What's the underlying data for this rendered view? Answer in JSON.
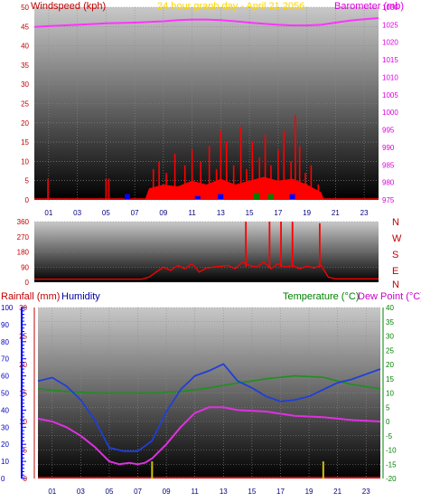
{
  "colors": {
    "wind": "#ff0000",
    "gust_alt": "#0000ff",
    "gust_green": "#008000",
    "barometer": "#ff33ff",
    "humidity": "#1f3fd9",
    "temperature": "#1f8f1f",
    "dewpoint": "#e030e0",
    "rain": "#d4c000",
    "title": "#ffd700",
    "left_label": "#c00000",
    "hum_label": "#0000a0",
    "temp_label": "#008000",
    "dew_label": "#cc00cc"
  },
  "chart_data": [
    {
      "type": "line",
      "title": "24 hour graph day - April 21 2056",
      "left_axis_label": "Windspeed (kph)",
      "right_axis_label": "Barometer (mb)",
      "left_ylim": [
        0,
        50
      ],
      "left_ticks": [
        "0",
        "5",
        "10",
        "15",
        "20",
        "25",
        "30",
        "35",
        "40",
        "45",
        "50"
      ],
      "right_ylim": [
        975,
        1030
      ],
      "right_ticks": [
        "975",
        "980",
        "985",
        "990",
        "995",
        "1000",
        "1005",
        "1010",
        "1015",
        "1020",
        "1025",
        "1030"
      ],
      "x_ticks": [
        "01",
        "03",
        "05",
        "07",
        "09",
        "11",
        "13",
        "15",
        "17",
        "19",
        "21",
        "23"
      ],
      "x_range_hours": [
        0,
        24
      ],
      "barometer_series": {
        "x": [
          0,
          1,
          2,
          3,
          4,
          5,
          6,
          7,
          8,
          9,
          10,
          11,
          12,
          13,
          14,
          15,
          16,
          17,
          18,
          19,
          20,
          21,
          22,
          23,
          24
        ],
        "y": [
          1024.4,
          1024.6,
          1024.8,
          1025.0,
          1025.2,
          1025.4,
          1025.5,
          1025.6,
          1025.8,
          1026.0,
          1026.3,
          1026.5,
          1026.5,
          1026.3,
          1026.0,
          1025.6,
          1025.3,
          1025.0,
          1024.8,
          1024.8,
          1025.0,
          1025.6,
          1026.2,
          1026.6,
          1026.9
        ]
      },
      "wind_spikes": {
        "x": [
          0.95,
          5.0,
          5.2,
          8.3,
          8.7,
          9.2,
          9.8,
          10.5,
          11.0,
          11.6,
          12.2,
          12.7,
          13.0,
          13.4,
          13.9,
          14.4,
          14.8,
          15.2,
          15.7,
          16.1,
          16.5,
          17.0,
          17.4,
          17.9,
          18.2,
          18.5,
          18.9,
          19.3,
          19.8
        ],
        "y": [
          5.5,
          5.5,
          5.5,
          8,
          10,
          7,
          12,
          9,
          13,
          10,
          14,
          8,
          18,
          15,
          9,
          19,
          8,
          15,
          11,
          17,
          9,
          13,
          18,
          10,
          22,
          14,
          7,
          9,
          4
        ]
      },
      "wind_base": {
        "x": [
          0,
          7.7,
          8.0,
          9,
          10,
          11,
          12,
          13,
          14,
          15,
          16,
          17,
          18,
          19,
          20,
          20.2,
          24
        ],
        "y": [
          0,
          0,
          3,
          4,
          3.5,
          5,
          4,
          5.5,
          4,
          5,
          6,
          5,
          5.5,
          4,
          2,
          0,
          0
        ]
      }
    },
    {
      "type": "line",
      "title": "",
      "left_ylim": [
        0,
        360
      ],
      "left_ticks": [
        "0",
        "90",
        "180",
        "270",
        "360"
      ],
      "right_labels": [
        "N",
        "W",
        "S",
        "E",
        "N"
      ],
      "direction_series": {
        "x": [
          0,
          7.5,
          8.0,
          8.5,
          9,
          9.5,
          10,
          10.5,
          11,
          11.5,
          12,
          12.5,
          13,
          13.5,
          14,
          14.5,
          15,
          15.5,
          16,
          16.5,
          17,
          17.5,
          18,
          18.5,
          19,
          19.5,
          20,
          20.5,
          21,
          24
        ],
        "y": [
          18,
          18,
          30,
          60,
          90,
          70,
          100,
          80,
          110,
          60,
          85,
          90,
          95,
          100,
          80,
          120,
          100,
          90,
          120,
          80,
          110,
          90,
          100,
          80,
          95,
          85,
          100,
          30,
          20,
          20
        ]
      },
      "direction_spikes": {
        "x": [
          14.75,
          16.4,
          17.2,
          18.0,
          19.9
        ],
        "y": [
          360,
          360,
          360,
          360,
          350
        ]
      }
    },
    {
      "type": "line",
      "title": "",
      "labels": {
        "rainfall": "Rainfall (mm)",
        "humidity": "Humidity",
        "temperature": "Temperature (°C)",
        "dewpoint": "Dew Point (°C)"
      },
      "humidity_axis": {
        "ylim": [
          0,
          100
        ],
        "ticks": [
          "0",
          "10",
          "20",
          "30",
          "40",
          "50",
          "60",
          "70",
          "80",
          "90",
          "100"
        ]
      },
      "rain_axis": {
        "ylim": [
          0,
          30
        ],
        "ticks": [
          "0",
          "5",
          "10",
          "15",
          "20",
          "25",
          "30"
        ]
      },
      "temp_axis": {
        "ylim": [
          -20,
          40
        ],
        "ticks": [
          "-20",
          "-15",
          "-10",
          "-5",
          "0",
          "5",
          "10",
          "15",
          "20",
          "25",
          "30",
          "35",
          "40"
        ]
      },
      "x_ticks": [
        "01",
        "03",
        "05",
        "07",
        "09",
        "11",
        "13",
        "15",
        "17",
        "19",
        "21",
        "23"
      ],
      "humidity_series": {
        "x": [
          0,
          1,
          2,
          3,
          4,
          5,
          6,
          7,
          8,
          9,
          10,
          11,
          12,
          13,
          14,
          15,
          16,
          17,
          18,
          19,
          20,
          21,
          22,
          23,
          24
        ],
        "y": [
          57,
          59,
          54,
          46,
          34,
          18,
          16,
          16,
          22,
          39,
          52,
          60,
          63,
          67,
          57,
          53,
          48,
          45,
          46,
          48,
          52,
          56,
          58,
          61,
          64
        ]
      },
      "temperature_series": {
        "x": [
          0,
          2,
          4,
          6,
          8,
          10,
          12,
          14,
          16,
          18,
          20,
          22,
          24
        ],
        "y": [
          11.5,
          10.5,
          10,
          10,
          10,
          10.5,
          11.8,
          13.5,
          15,
          16,
          15.5,
          13,
          11.5
        ]
      },
      "dewpoint_series": {
        "x": [
          0,
          1,
          2,
          3,
          4,
          5,
          5.7,
          6.4,
          7.0,
          7.5,
          8,
          9,
          10,
          11,
          12,
          13,
          14,
          16,
          18,
          20,
          22,
          24
        ],
        "y": [
          1,
          0,
          -2,
          -5,
          -9,
          -14,
          -15,
          -14.5,
          -15,
          -14.5,
          -13,
          -8,
          -2,
          3,
          5,
          5,
          4,
          3.5,
          2,
          1.5,
          0.5,
          0
        ]
      },
      "rain_events": {
        "x": [
          8.0,
          20.0
        ],
        "y": [
          3,
          3
        ]
      }
    }
  ]
}
